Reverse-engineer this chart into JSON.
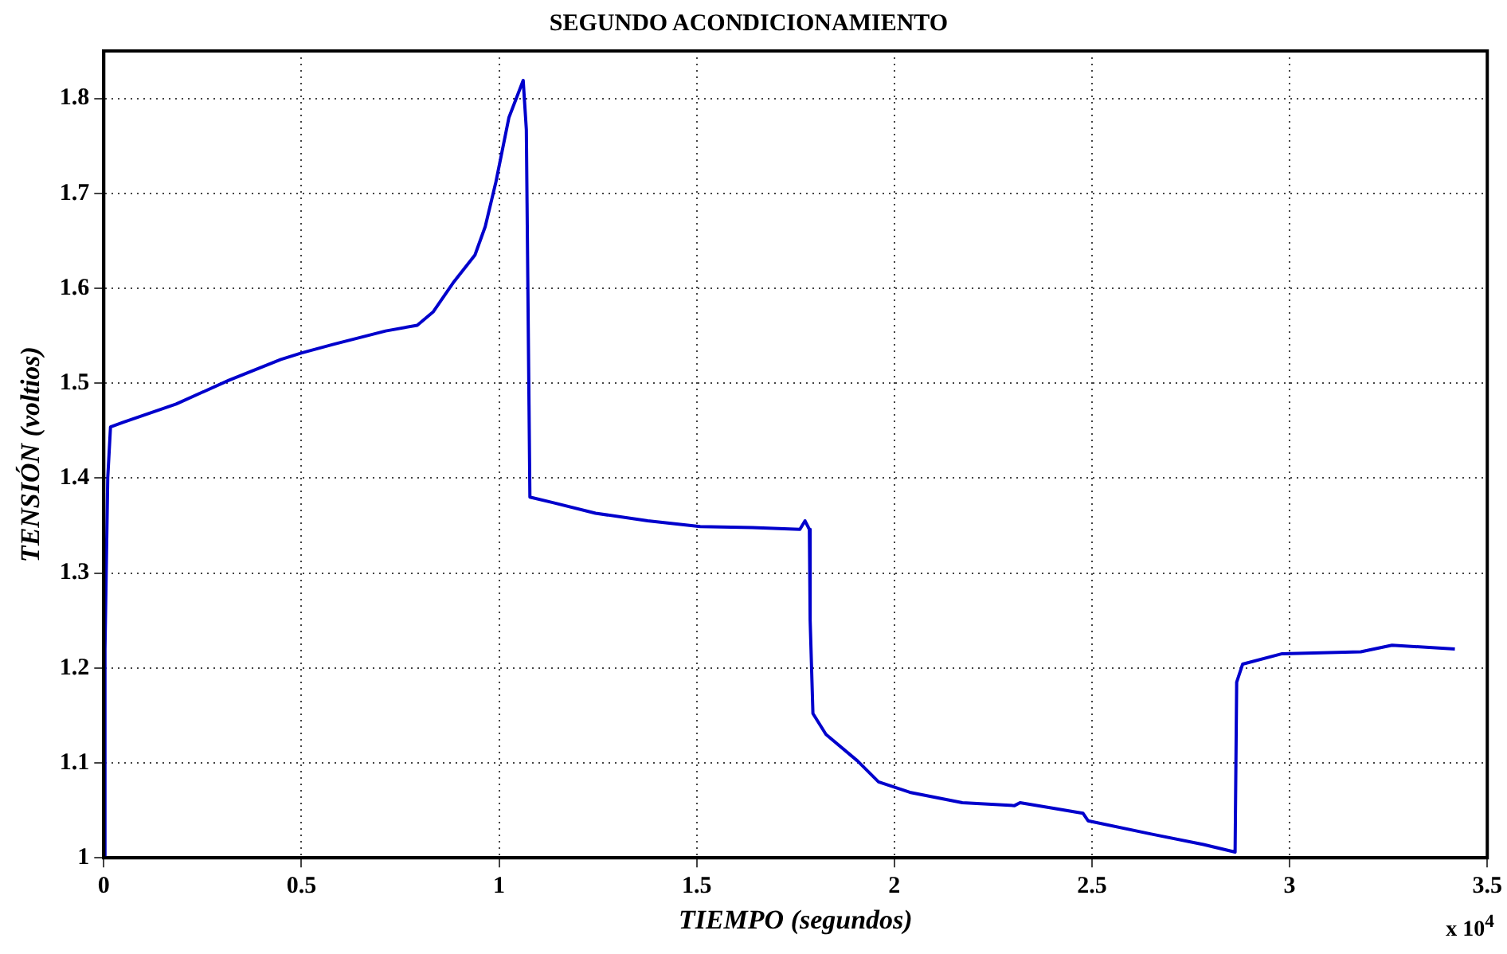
{
  "chart_data": {
    "type": "line",
    "title": "SEGUNDO ACONDICIONAMIENTO",
    "xlabel": "TIEMPO (segundos)",
    "ylabel": "TENSIÓN (voltios)",
    "annotations": [
      "x 10$^{4}$"
    ],
    "xlim": [
      0,
      3.5
    ],
    "xticks": [
      0,
      0.5,
      1,
      1.5,
      2,
      2.5,
      3,
      3.5
    ],
    "ylim": [
      1,
      1.85
    ],
    "yticks": [
      1,
      1.1,
      1.2,
      1.3,
      1.4,
      1.5,
      1.6,
      1.7,
      1.8
    ],
    "grid": true,
    "line_style": "solid",
    "marker": "none",
    "series": [
      {
        "color": "#0000cc",
        "x": [
          0,
          0.003,
          0.01,
          0.017,
          0.05,
          0.183,
          0.316,
          0.448,
          0.501,
          0.581,
          0.713,
          0.793,
          0.833,
          0.886,
          0.939,
          0.965,
          0.992,
          1.025,
          1.061,
          1.069,
          1.078,
          1.138,
          1.244,
          1.376,
          1.509,
          1.641,
          1.761,
          1.774,
          1.785,
          1.787,
          1.794,
          1.827,
          1.907,
          1.96,
          2.039,
          2.172,
          2.304,
          2.318,
          2.477,
          2.49,
          2.65,
          2.782,
          2.862,
          2.866,
          2.881,
          2.981,
          3.18,
          3.259,
          3.418
        ],
        "values": [
          1.0,
          1.22,
          1.4,
          1.454,
          1.459,
          1.478,
          1.503,
          1.525,
          1.532,
          1.541,
          1.555,
          1.561,
          1.575,
          1.607,
          1.635,
          1.665,
          1.712,
          1.78,
          1.819,
          1.767,
          1.38,
          1.374,
          1.363,
          1.355,
          1.349,
          1.348,
          1.346,
          1.355,
          1.346,
          1.25,
          1.152,
          1.13,
          1.102,
          1.08,
          1.069,
          1.058,
          1.055,
          1.058,
          1.047,
          1.039,
          1.025,
          1.014,
          1.006,
          1.185,
          1.204,
          1.215,
          1.217,
          1.224,
          1.22
        ]
      }
    ]
  }
}
